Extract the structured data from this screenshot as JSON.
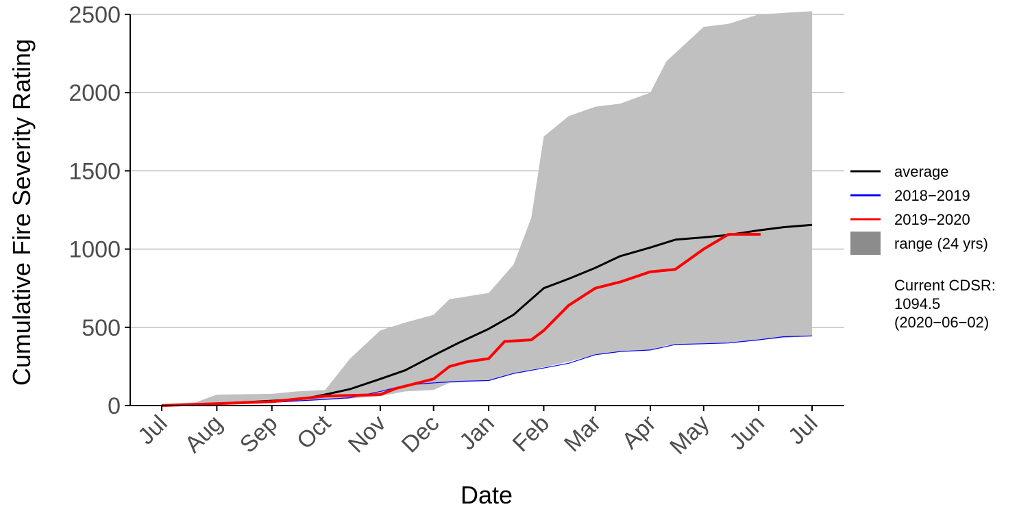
{
  "chart_data": {
    "type": "line",
    "title": "",
    "xlabel": "Date",
    "ylabel": "Cumulative Fire Severity Rating",
    "ylim": [
      0,
      2500
    ],
    "yticks": [
      0,
      500,
      1000,
      1500,
      2000,
      2500
    ],
    "ytick_labels": [
      "0",
      "500",
      "1000",
      "1500",
      "2000",
      "2500"
    ],
    "xlim": [
      "2019-07-01",
      "2020-07-01"
    ],
    "xticks": [
      "2019-07-01",
      "2019-08-01",
      "2019-09-01",
      "2019-10-01",
      "2019-11-01",
      "2019-12-01",
      "2020-01-01",
      "2020-02-01",
      "2020-03-01",
      "2020-04-01",
      "2020-05-01",
      "2020-06-01",
      "2020-07-01"
    ],
    "xtick_labels": [
      "Jul",
      "Aug",
      "Sep",
      "Oct",
      "Nov",
      "Dec",
      "Jan",
      "Feb",
      "Mar",
      "Apr",
      "May",
      "Jun",
      "Jul"
    ],
    "grid": "horizontal major",
    "legend_position": "right",
    "series": [
      {
        "name": "average",
        "color": "#000000",
        "x": [
          "2019-07-01",
          "2019-08-01",
          "2019-09-01",
          "2019-09-20",
          "2019-10-01",
          "2019-10-15",
          "2019-11-01",
          "2019-11-15",
          "2019-12-01",
          "2019-12-15",
          "2020-01-01",
          "2020-01-15",
          "2020-02-01",
          "2020-02-15",
          "2020-03-01",
          "2020-03-15",
          "2020-04-01",
          "2020-04-15",
          "2020-05-01",
          "2020-05-15",
          "2020-06-01",
          "2020-06-15",
          "2020-07-01"
        ],
        "y": [
          0,
          12,
          30,
          45,
          70,
          105,
          170,
          225,
          320,
          400,
          490,
          580,
          750,
          810,
          880,
          955,
          1010,
          1060,
          1075,
          1090,
          1120,
          1140,
          1155
        ]
      },
      {
        "name": "2018−2019",
        "color": "#0000ff",
        "x": [
          "2019-07-01",
          "2019-08-01",
          "2019-09-01",
          "2019-10-01",
          "2019-10-15",
          "2019-11-01",
          "2019-11-15",
          "2019-12-01",
          "2019-12-15",
          "2020-01-01",
          "2020-01-15",
          "2020-02-01",
          "2020-02-15",
          "2020-03-01",
          "2020-03-15",
          "2020-04-01",
          "2020-04-15",
          "2020-05-01",
          "2020-05-15",
          "2020-06-01",
          "2020-06-15",
          "2020-07-01"
        ],
        "y": [
          0,
          10,
          20,
          40,
          50,
          90,
          130,
          145,
          155,
          160,
          205,
          240,
          270,
          325,
          345,
          355,
          390,
          395,
          400,
          420,
          440,
          445
        ]
      },
      {
        "name": "2019−2020",
        "color": "#ff0000",
        "x": [
          "2019-07-01",
          "2019-08-01",
          "2019-09-01",
          "2019-10-01",
          "2019-10-15",
          "2019-11-01",
          "2019-11-10",
          "2019-12-01",
          "2019-12-10",
          "2019-12-20",
          "2020-01-01",
          "2020-01-10",
          "2020-01-25",
          "2020-02-01",
          "2020-02-15",
          "2020-03-01",
          "2020-03-15",
          "2020-04-01",
          "2020-04-15",
          "2020-05-01",
          "2020-05-15",
          "2020-06-02"
        ],
        "y": [
          0,
          12,
          25,
          60,
          65,
          70,
          110,
          170,
          250,
          280,
          300,
          410,
          420,
          480,
          640,
          750,
          790,
          855,
          870,
          1000,
          1094.5,
          1094.5
        ]
      },
      {
        "name": "range (24 yrs)",
        "color": "#c0c0c0",
        "type": "area",
        "x": [
          "2019-07-01",
          "2019-07-20",
          "2019-08-01",
          "2019-09-01",
          "2019-09-15",
          "2019-10-01",
          "2019-10-15",
          "2019-11-01",
          "2019-11-15",
          "2019-12-01",
          "2019-12-10",
          "2020-01-01",
          "2020-01-15",
          "2020-01-25",
          "2020-02-01",
          "2020-02-15",
          "2020-03-01",
          "2020-03-15",
          "2020-04-01",
          "2020-04-10",
          "2020-05-01",
          "2020-05-15",
          "2020-06-01",
          "2020-07-01"
        ],
        "y_min": [
          0,
          5,
          10,
          20,
          25,
          35,
          45,
          60,
          90,
          100,
          145,
          160,
          205,
          230,
          245,
          280,
          325,
          345,
          355,
          385,
          395,
          405,
          420,
          445
        ],
        "y_max": [
          10,
          20,
          70,
          75,
          90,
          100,
          300,
          480,
          530,
          580,
          680,
          720,
          900,
          1200,
          1720,
          1850,
          1910,
          1930,
          2000,
          2200,
          2420,
          2440,
          2500,
          2520
        ]
      }
    ],
    "annotation": {
      "label": "Current CDSR:",
      "value": "1094.5",
      "date": "(2020−06−02)"
    }
  }
}
